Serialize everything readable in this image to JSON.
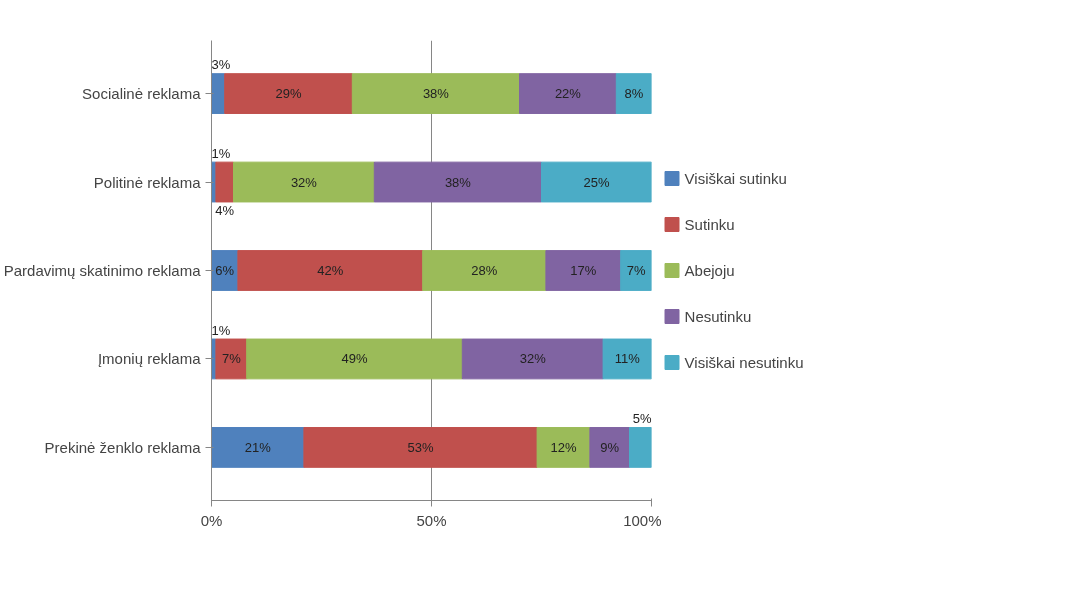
{
  "chart_data": {
    "type": "bar",
    "orientation": "horizontal",
    "stacked": true,
    "categories": [
      "Socialinė reklama",
      "Politinė reklama",
      "Pardavimų skatinimo reklama",
      "Įmonių reklama",
      "Prekinė ženklo reklama"
    ],
    "series": [
      {
        "name": "Visiškai sutinku",
        "color": "#4f81bd",
        "values": [
          3,
          1,
          6,
          1,
          21
        ],
        "value_labels": [
          "3%",
          "1%",
          "6%",
          "1%",
          "21%"
        ]
      },
      {
        "name": "Sutinku",
        "color": "#c0504d",
        "values": [
          29,
          4,
          42,
          7,
          53
        ],
        "value_labels": [
          "29%",
          "4%",
          "42%",
          "7%",
          "53%"
        ]
      },
      {
        "name": "Abejoju",
        "color": "#9bbb59",
        "values": [
          38,
          32,
          28,
          49,
          12
        ],
        "value_labels": [
          "38%",
          "32%",
          "28%",
          "49%",
          "12%"
        ]
      },
      {
        "name": "Nesutinku",
        "color": "#8064a2",
        "values": [
          22,
          38,
          17,
          32,
          9
        ],
        "value_labels": [
          "22%",
          "38%",
          "17%",
          "32%",
          "9%"
        ]
      },
      {
        "name": "Visiškai nesutinku",
        "color": "#4bacc6",
        "values": [
          8,
          25,
          7,
          11,
          5
        ],
        "value_labels": [
          "8%",
          "25%",
          "7%",
          "11%",
          "5%"
        ]
      }
    ],
    "xlim": [
      0,
      100
    ],
    "xticks": [
      {
        "value": 0,
        "label": "0%"
      },
      {
        "value": 50,
        "label": "50%"
      },
      {
        "value": 100,
        "label": "100%"
      }
    ],
    "grid": "x",
    "legend": "right"
  }
}
